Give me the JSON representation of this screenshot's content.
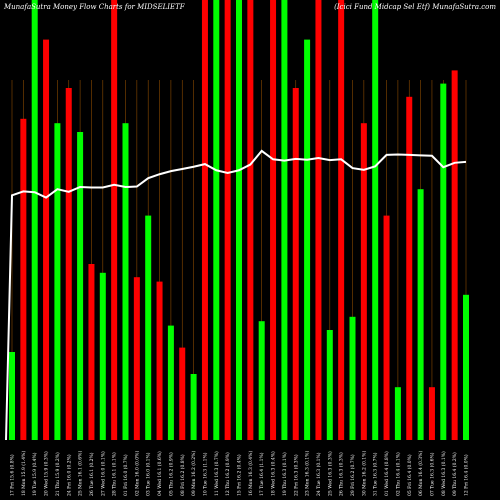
{
  "chart_data": {
    "type": "bar",
    "title_left": "MunafaSutra  Money Flow  Charts for MIDSELIETF",
    "title_right": "(Icici    Fund Midcap Sel Etf) MunafaSutra.com",
    "colors": {
      "background": "#000000",
      "up": "#00ff00",
      "down": "#ff0000",
      "line": "#ffffff",
      "grid": "#8a4a00"
    },
    "ylim": [
      0,
      100
    ],
    "categories": [
      "17 Fri 15.6 (0.8%)",
      "18 Mon 15.9 (1.4%)",
      "19 Tue 15.9 (0.4%)",
      "20 Wed 15.9 (0.3%)",
      "21 Thu 15.9 (0.2%)",
      "24 Fri 16.0 (0.2%)",
      "25 Mon 16.1 (0.6%)",
      "26 Tue 16.1 (0.2%)",
      "27 Wed 16.0 (0.1%)",
      "28 Thu 16.1 (0.1%)",
      "01 Fri 16.0 (0.7%)",
      "02 Mon 16.0 (0.0%)",
      "03 Tue 16.0 (0.1%)",
      "04 Wed 16.1 (0.6%)",
      "05 Thu 16.2 (0.9%)",
      "08 Fri 16.2 (0.8%)",
      "09 Mon 16.2 (0.2%)",
      "10 Tue 16.3 (1.1%)",
      "11 Wed 16.3 (0.7%)",
      "12 Thu 16.2 (0.9%)",
      "15 Fri 16.2 (0.4%)",
      "16 Mon 16.3 (0.4%)",
      "17 Tue 16.4 (1.1%)",
      "18 Wed 16.3 (0.4%)",
      "19 Thu 16.3 (0.1%)",
      "22 Fri 16.3 (0.3%)",
      "23 Mon 16.3 (0.1%)",
      "24 Tue 16.3 (0.1%)",
      "25 Wed 16.3 (0.3%)",
      "26 Thu 16.3 (0.3%)",
      "29 Fri 16.2 (0.7%)",
      "30 Mon 16.2 (0.1%)",
      "31 Tue 16.3 (0.7%)",
      "01 Wed 16.4 (0.8%)",
      "02 Thu 16.4 (0.1%)",
      "05 Fri 16.4 (0.0%)",
      "06 Mon 16.4 (0.3%)",
      "07 Tue 16.3 (0.6%)",
      "08 Wed 16.3 (0.1%)",
      "09 Thu 16.4 (0.2%)",
      "12 Fri 16.4 (0.0%)"
    ],
    "bar_colors": [
      "green",
      "red",
      "green",
      "red",
      "green",
      "red",
      "green",
      "red",
      "green",
      "red",
      "green",
      "red",
      "green",
      "red",
      "green",
      "red",
      "green",
      "red",
      "green",
      "red",
      "green",
      "red",
      "green",
      "red",
      "green",
      "red",
      "green",
      "red",
      "green",
      "red",
      "green",
      "red",
      "green",
      "red",
      "green",
      "red",
      "green",
      "red",
      "green",
      "red",
      "green"
    ],
    "bar_values": [
      20,
      73,
      100,
      91,
      72,
      80,
      70,
      40,
      38,
      100,
      72,
      37,
      51,
      36,
      26,
      21,
      15,
      100,
      100,
      100,
      100,
      100,
      27,
      100,
      100,
      80,
      91,
      100,
      25,
      100,
      28,
      72,
      100,
      51,
      12,
      78,
      57,
      12,
      81,
      84,
      33
    ],
    "line_values": [
      55.6,
      56.5,
      56.3,
      55.1,
      57.0,
      56.4,
      57.5,
      57.4,
      57.4,
      58.0,
      57.5,
      57.6,
      59.5,
      60.4,
      61.1,
      61.6,
      62.1,
      62.7,
      61.3,
      60.7,
      61.3,
      62.6,
      65.7,
      63.8,
      63.5,
      63.9,
      63.7,
      64.1,
      63.6,
      63.8,
      61.8,
      61.4,
      62.2,
      64.8,
      64.9,
      64.8,
      64.7,
      64.6,
      62.0,
      63.0,
      63.2
    ],
    "grid": "vertical"
  }
}
